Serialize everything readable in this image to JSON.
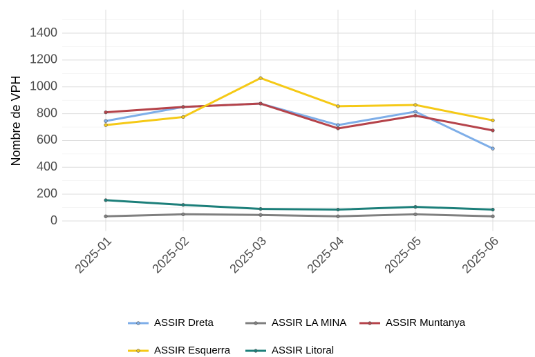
{
  "chart_data": {
    "type": "line",
    "y_label": "Nombre de VPH",
    "categories": [
      "2025-01",
      "2025-02",
      "2025-03",
      "2025-04",
      "2025-05",
      "2025-06"
    ],
    "series": [
      {
        "name": "ASSIR Dreta",
        "color": "#7eaee8",
        "values": [
          745,
          850,
          875,
          715,
          815,
          540
        ]
      },
      {
        "name": "ASSIR LA MINA",
        "color": "#7f7f7f",
        "values": [
          35,
          50,
          45,
          35,
          50,
          35
        ]
      },
      {
        "name": "ASSIR Muntanya",
        "color": "#b5434a",
        "values": [
          810,
          850,
          875,
          690,
          785,
          675
        ]
      },
      {
        "name": "ASSIR Esquerra",
        "color": "#f5c916",
        "values": [
          715,
          775,
          1065,
          855,
          865,
          750
        ]
      },
      {
        "name": "ASSIR Litoral",
        "color": "#1c7f7a",
        "values": [
          155,
          120,
          90,
          85,
          105,
          85
        ]
      }
    ],
    "ylim": [
      -75,
      1575
    ],
    "yticks": [
      0,
      200,
      400,
      600,
      800,
      1000,
      1200,
      1400
    ],
    "grid": true,
    "legend": "bottom"
  }
}
